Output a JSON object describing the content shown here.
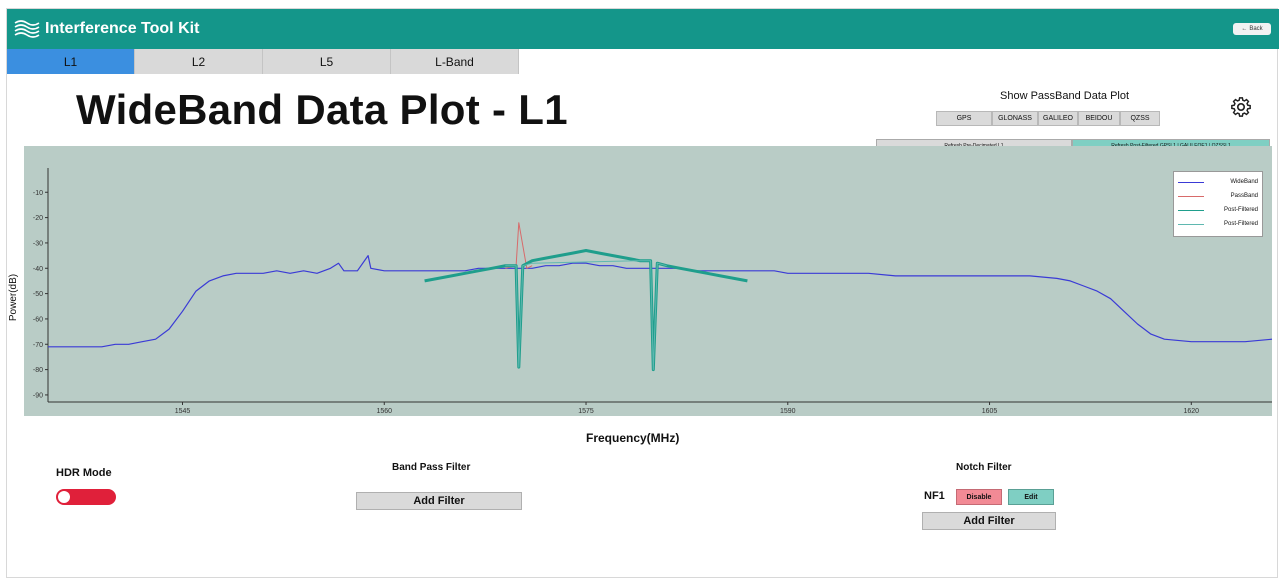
{
  "app": {
    "title": "Interference Tool Kit",
    "back_label": "Back"
  },
  "tabs": [
    {
      "label": "L1",
      "active": true
    },
    {
      "label": "L2",
      "active": false
    },
    {
      "label": "L5",
      "active": false
    },
    {
      "label": "L-Band",
      "active": false
    }
  ],
  "page_title": "WideBand Data Plot - L1",
  "passband": {
    "label": "Show PassBand Data Plot",
    "buttons": [
      "GPS",
      "GLONASS",
      "GALILEO",
      "BEIDOU",
      "QZSS"
    ]
  },
  "refresh": {
    "pre_decimated": "Refresh Pre-Decimated L1",
    "post_filtered": "Refresh Post-Filtered GPSL1 | GALILEOE1 | QZSSL1"
  },
  "colors": {
    "accent": "#14968a",
    "tab_active": "#3b8fe0",
    "plot_bg": "#b9ccc6",
    "wideband": "#3a3ad6",
    "passband": "#d86a6a",
    "post_filtered_1": "#1f9e8c",
    "post_filtered_2": "#5fb8b0",
    "toggle": "#e0203a"
  },
  "icons": {
    "logo": "signal-waves-icon",
    "gear": "gear-icon",
    "back": "back-arrow-icon"
  },
  "chart_data": {
    "type": "line",
    "xlabel": "Frequency(MHz)",
    "ylabel": "Power(dB)",
    "xlim": [
      1535,
      1626
    ],
    "ylim": [
      -92,
      -2
    ],
    "x_ticks": [
      1545,
      1560,
      1575,
      1590,
      1605,
      1620
    ],
    "y_ticks": [
      -10,
      -20,
      -30,
      -40,
      -50,
      -60,
      -70,
      -80,
      -90
    ],
    "legend_position": "top-right",
    "grid": false,
    "series": [
      {
        "name": "WideBand",
        "x": [
          1535,
          1536,
          1537,
          1538,
          1539,
          1540,
          1541,
          1542,
          1543,
          1544,
          1545,
          1546,
          1547,
          1548,
          1549,
          1550,
          1551,
          1552,
          1553,
          1554,
          1555,
          1556,
          1556.6,
          1557,
          1558,
          1558.8,
          1559,
          1560,
          1561,
          1562,
          1563,
          1564,
          1565,
          1566,
          1567,
          1568,
          1569,
          1570,
          1571,
          1572,
          1573,
          1574,
          1575,
          1576,
          1577,
          1578,
          1579,
          1580,
          1581,
          1582,
          1583,
          1584,
          1585,
          1586,
          1587,
          1588,
          1589,
          1590,
          1592,
          1594,
          1596,
          1598,
          1600,
          1602,
          1604,
          1606,
          1608,
          1610,
          1611,
          1612,
          1613,
          1614,
          1615,
          1616,
          1617,
          1618,
          1620,
          1622,
          1624,
          1626
        ],
        "values": [
          -71,
          -71,
          -71,
          -71,
          -71,
          -70,
          -70,
          -69,
          -68,
          -64,
          -57,
          -49,
          -45,
          -43,
          -42,
          -42,
          -42,
          -41,
          -42,
          -41,
          -42,
          -40,
          -38,
          -41,
          -41,
          -35,
          -40,
          -41,
          -41,
          -41,
          -41,
          -41,
          -41,
          -41,
          -40,
          -40,
          -40,
          -40,
          -40,
          -39,
          -39,
          -38,
          -38,
          -39,
          -39,
          -40,
          -40,
          -40,
          -40,
          -40,
          -41,
          -41,
          -41,
          -41,
          -41,
          -41,
          -41,
          -42,
          -42,
          -42,
          -42,
          -43,
          -43,
          -43,
          -43,
          -43,
          -43,
          -44,
          -45,
          -47,
          -49,
          -52,
          -57,
          -62,
          -66,
          -68,
          -69,
          -69,
          -69,
          -68
        ]
      },
      {
        "name": "PassBand",
        "x": [
          1569,
          1569.8,
          1570,
          1570.6,
          1571
        ],
        "values": [
          -40,
          -39,
          -22,
          -40,
          -39
        ]
      },
      {
        "name": "Post-Filtered",
        "x": [
          1563,
          1564,
          1565,
          1566,
          1567,
          1568,
          1569,
          1569.8,
          1570,
          1570.3,
          1571,
          1572,
          1573,
          1574,
          1575,
          1576,
          1577,
          1578,
          1579,
          1579.8,
          1580,
          1580.3,
          1581,
          1582,
          1583,
          1584,
          1585,
          1586,
          1587
        ],
        "values": [
          -45,
          -44,
          -43,
          -42,
          -41,
          -40,
          -39,
          -39,
          -79,
          -39,
          -37,
          -36,
          -35,
          -34,
          -33,
          -34,
          -35,
          -36,
          -37,
          -37,
          -80,
          -38,
          -39,
          -40,
          -41,
          -42,
          -43,
          -44,
          -45
        ]
      },
      {
        "name": "Post-Filtered",
        "x": [
          1569,
          1569.8,
          1570,
          1570.3,
          1571,
          1579,
          1579.8,
          1580,
          1580.3,
          1581
        ],
        "values": [
          -39,
          -39,
          -79,
          -39,
          -38,
          -37,
          -37,
          -80,
          -38,
          -39
        ]
      }
    ]
  },
  "ui": {
    "hdr_label": "HDR Mode",
    "hdr_enabled": false,
    "bpf_label": "Band Pass Filter",
    "add_filter": "Add Filter",
    "notch_label": "Notch Filter",
    "nf1": "NF1",
    "disable": "Disable",
    "edit": "Edit"
  }
}
